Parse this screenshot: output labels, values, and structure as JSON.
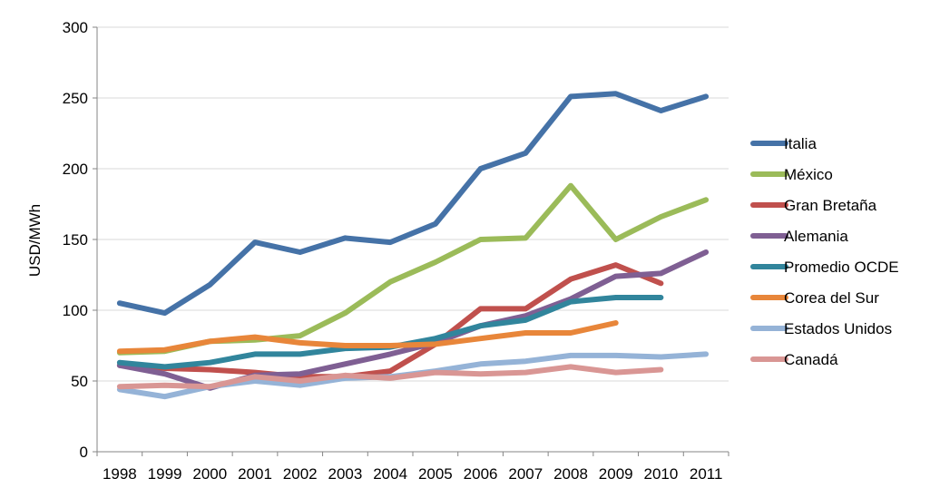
{
  "chart_data": {
    "type": "line",
    "title": "",
    "xlabel": "",
    "ylabel": "USD/MWh",
    "ylim": [
      0,
      300
    ],
    "y_ticks": [
      "0",
      "50",
      "100",
      "150",
      "200",
      "250",
      "300"
    ],
    "categories": [
      "1998",
      "1999",
      "2000",
      "2001",
      "2002",
      "2003",
      "2004",
      "2005",
      "2006",
      "2007",
      "2008",
      "2009",
      "2010",
      "2011"
    ],
    "grid": true,
    "legend_position": "right",
    "series": [
      {
        "name": "Italia",
        "color": "#4572A7",
        "values": [
          105,
          98,
          118,
          148,
          141,
          151,
          148,
          161,
          200,
          211,
          251,
          253,
          241,
          251
        ]
      },
      {
        "name": "México",
        "color": "#9BBB59",
        "values": [
          70,
          71,
          78,
          79,
          82,
          98,
          120,
          134,
          150,
          151,
          188,
          150,
          166,
          178
        ]
      },
      {
        "name": "Gran Bretaña",
        "color": "#C0504D",
        "values": [
          61,
          59,
          58,
          56,
          53,
          53,
          57,
          76,
          101,
          101,
          122,
          132,
          119,
          null
        ]
      },
      {
        "name": "Alemania",
        "color": "#7F5F93",
        "values": [
          61,
          55,
          45,
          54,
          55,
          62,
          69,
          77,
          89,
          96,
          108,
          124,
          126,
          141
        ]
      },
      {
        "name": "Promedio OCDE",
        "color": "#31859C",
        "values": [
          63,
          60,
          63,
          69,
          69,
          73,
          74,
          80,
          89,
          93,
          106,
          109,
          109,
          null
        ]
      },
      {
        "name": "Corea del Sur",
        "color": "#E8863A",
        "values": [
          71,
          72,
          78,
          81,
          77,
          75,
          75,
          76,
          80,
          84,
          84,
          91,
          null,
          null
        ]
      },
      {
        "name": "Estados Unidos",
        "color": "#95B3D7",
        "values": [
          44,
          39,
          46,
          50,
          47,
          52,
          53,
          57,
          62,
          64,
          68,
          68,
          67,
          69
        ]
      },
      {
        "name": "Canadá",
        "color": "#D99694",
        "values": [
          46,
          47,
          46,
          53,
          50,
          54,
          52,
          56,
          55,
          56,
          60,
          56,
          58,
          null
        ]
      }
    ]
  }
}
